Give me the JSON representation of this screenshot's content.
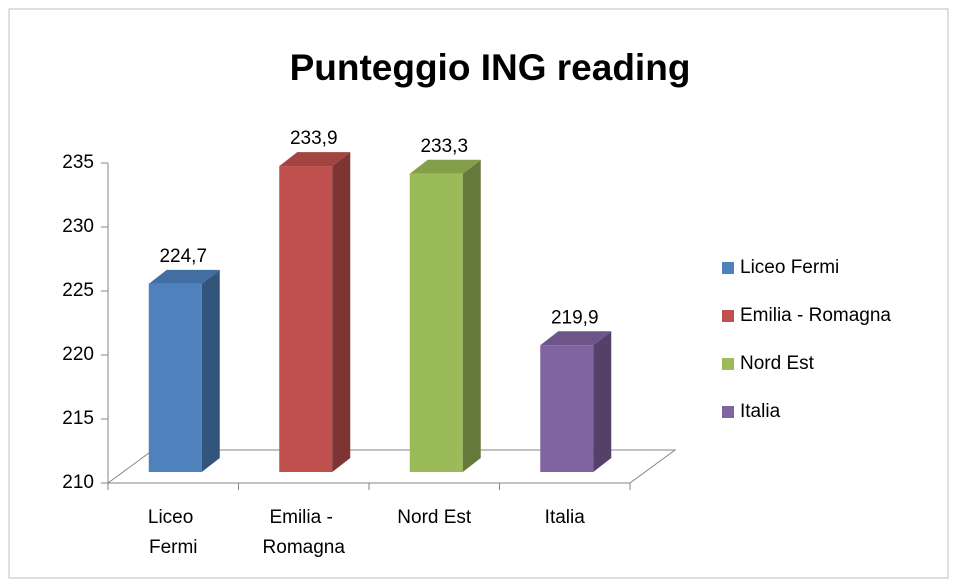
{
  "chart_data": {
    "type": "bar3d",
    "title": "Punteggio ING reading",
    "categories": [
      "Liceo Fermi",
      "Emilia - Romagna",
      "Nord Est",
      "Italia"
    ],
    "values": [
      224.7,
      233.9,
      233.3,
      219.9
    ],
    "value_labels": [
      "224,7",
      "233,9",
      "233,3",
      "219,9"
    ],
    "colors": [
      "#4f81bd",
      "#c0504d",
      "#9bbb59",
      "#8064a2"
    ],
    "ylim": [
      210,
      235
    ],
    "yticks": [
      210,
      215,
      220,
      225,
      230,
      235
    ],
    "legend": "right"
  }
}
